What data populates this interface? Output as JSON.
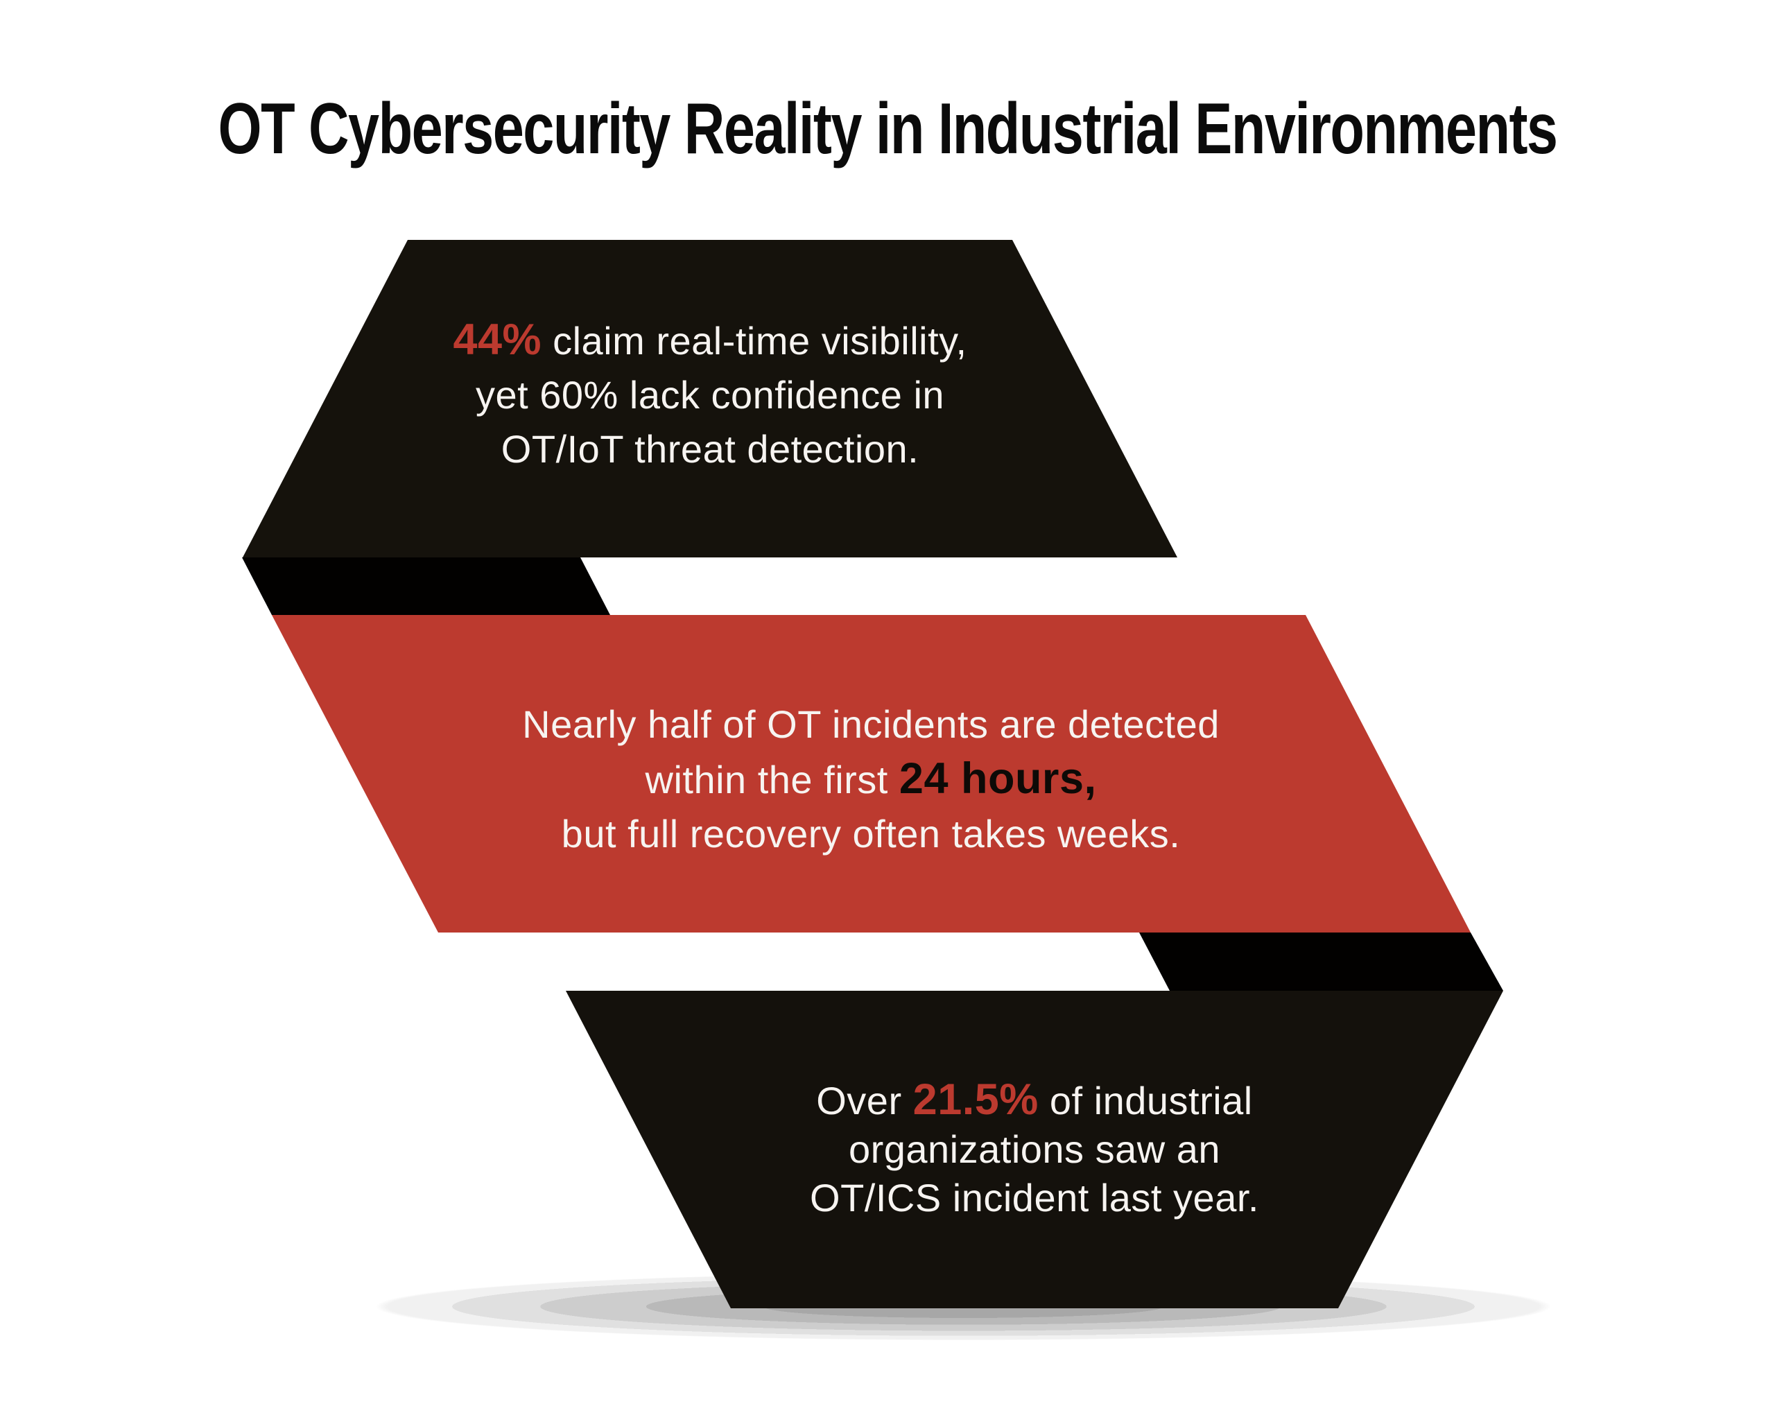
{
  "title": {
    "text": "OT Cybersecurity Reality in Industrial Environments"
  },
  "colors": {
    "page_bg": "#ffffff",
    "title_color": "#0b0b0b",
    "accent_red": "#bc3a2f",
    "ribbon_black_top": "#15120c",
    "ribbon_black_bottom": "#14110c",
    "fold_black": "#020100",
    "text_light": "#f7f4f1",
    "accent_dark_text": "#0d0a07"
  },
  "stats": [
    {
      "value": "44%",
      "description": "claim real-time visibility"
    },
    {
      "value": "60%",
      "description": "lack confidence in OT/IoT threat detection"
    },
    {
      "value": "24 hours",
      "description": "nearly half of OT incidents are detected within the first 24 hours"
    },
    {
      "value": "21.5%",
      "description": "of industrial organizations saw an OT/ICS incident last year"
    }
  ],
  "banners": [
    {
      "name": "top-black-banner",
      "lines": [
        {
          "segments": [
            {
              "text": "44%",
              "style": "accent-red"
            },
            {
              "text": " claim real-time visibility,",
              "style": "normal"
            }
          ]
        },
        {
          "segments": [
            {
              "text": "yet 60% lack confidence in",
              "style": "normal"
            }
          ]
        },
        {
          "segments": [
            {
              "text": "OT/IoT threat detection.",
              "style": "normal"
            }
          ]
        }
      ]
    },
    {
      "name": "middle-red-banner",
      "lines": [
        {
          "segments": [
            {
              "text": "Nearly half of OT incidents are detected",
              "style": "normal"
            }
          ]
        },
        {
          "segments": [
            {
              "text": "within the first ",
              "style": "normal"
            },
            {
              "text": "24 hours,",
              "style": "accent-black"
            }
          ]
        },
        {
          "segments": [
            {
              "text": "but full recovery often takes weeks.",
              "style": "normal"
            }
          ]
        }
      ]
    },
    {
      "name": "bottom-black-banner",
      "lines": [
        {
          "segments": [
            {
              "text": "Over ",
              "style": "normal"
            },
            {
              "text": "21.5%",
              "style": "accent-red"
            },
            {
              "text": " of industrial",
              "style": "normal"
            }
          ]
        },
        {
          "segments": [
            {
              "text": "organizations saw an",
              "style": "normal"
            }
          ]
        },
        {
          "segments": [
            {
              "text": "OT/ICS incident last year.",
              "style": "normal"
            }
          ]
        }
      ]
    }
  ]
}
